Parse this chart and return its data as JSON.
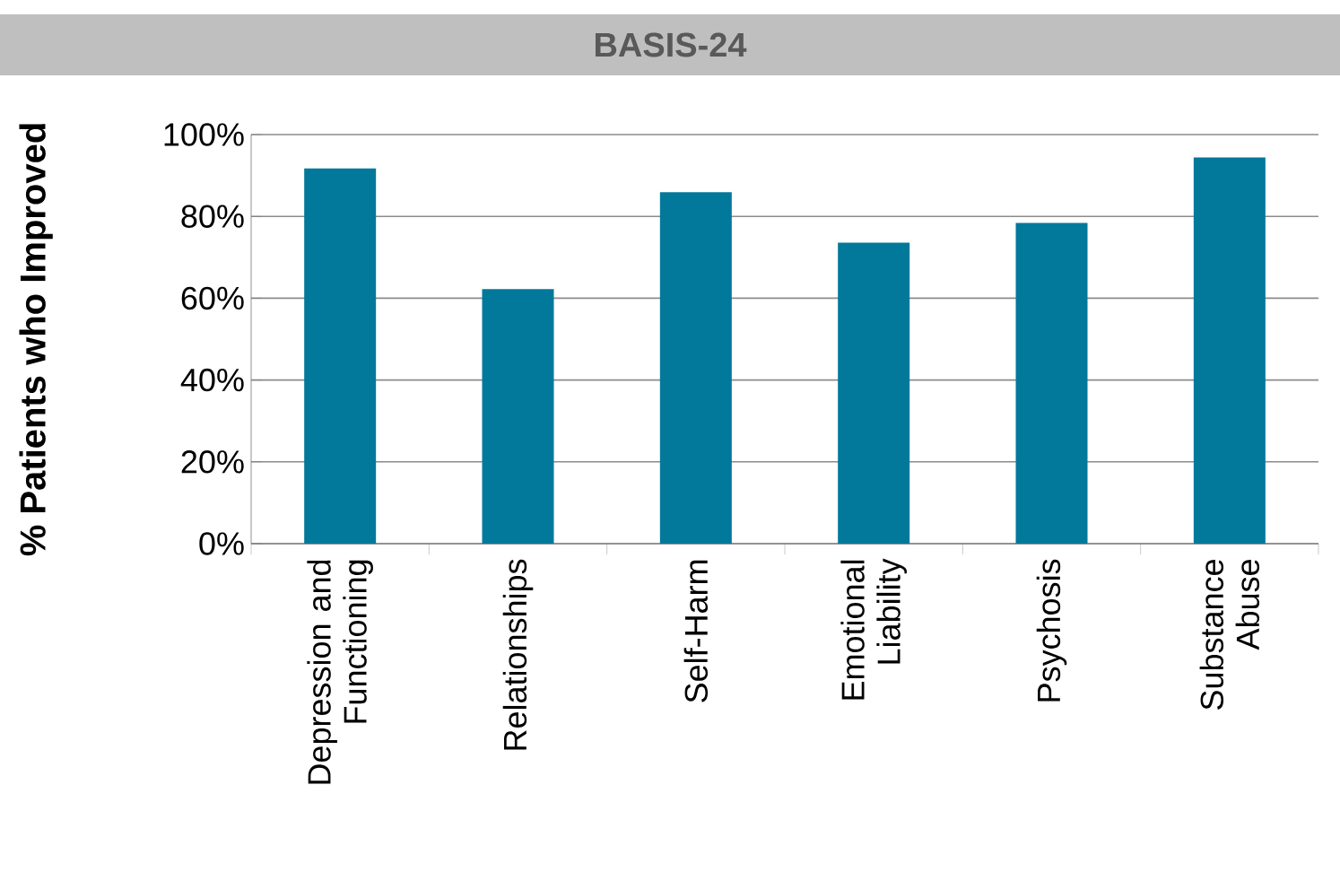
{
  "chart_data": {
    "type": "bar",
    "title": "BASIS-24",
    "ylabel": "% Patients who Improved",
    "categories": [
      "Depression and Functioning",
      "Relationships",
      "Self-Harm",
      "Emotional Liability",
      "Psychosis",
      "Substance Abuse"
    ],
    "values": [
      91.7,
      62.2,
      85.9,
      73.6,
      78.4,
      94.4
    ],
    "color": "#02799a",
    "ylim": [
      0,
      100
    ],
    "yticks": [
      {
        "value": 0,
        "label": "0%"
      },
      {
        "value": 20,
        "label": "20%"
      },
      {
        "value": 40,
        "label": "40%"
      },
      {
        "value": 60,
        "label": "60%"
      },
      {
        "value": 80,
        "label": "80%"
      },
      {
        "value": 100,
        "label": "100%"
      }
    ],
    "grid": "y"
  }
}
